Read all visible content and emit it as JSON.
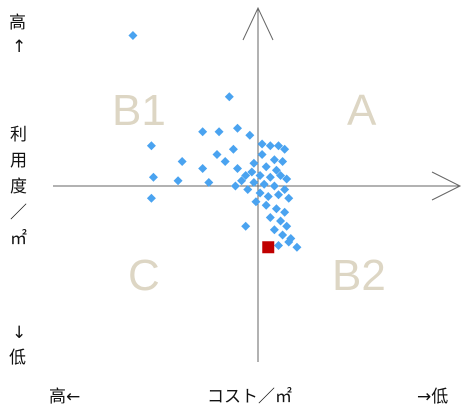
{
  "chart_data": {
    "type": "scatter",
    "xlabel": "コスト／㎡",
    "x_left_label": "高←",
    "x_right_label": "→低",
    "y_top_label": [
      "高",
      "↑"
    ],
    "y_bottom_label": [
      "↓",
      "低"
    ],
    "ylabel": [
      "利",
      "用",
      "度",
      "／",
      "㎡"
    ],
    "quadrant_labels": {
      "A": "A",
      "B1": "B1",
      "B2": "B2",
      "C": "C"
    },
    "xlim": [
      -1,
      1
    ],
    "ylim": [
      -1,
      1
    ],
    "colors": {
      "points": "#4aa3f0",
      "highlight": "#c00000",
      "quadrant_text": "#ddd6c4",
      "axes": "#666666"
    },
    "points": [
      [
        -0.61,
        0.86
      ],
      [
        -0.14,
        0.51
      ],
      [
        -0.52,
        0.23
      ],
      [
        -0.37,
        0.14
      ],
      [
        -0.39,
        0.03
      ],
      [
        -0.51,
        0.05
      ],
      [
        -0.52,
        -0.07
      ],
      [
        -0.27,
        0.1
      ],
      [
        -0.24,
        0.02
      ],
      [
        -0.27,
        0.31
      ],
      [
        -0.19,
        0.31
      ],
      [
        -0.1,
        0.33
      ],
      [
        -0.04,
        0.29
      ],
      [
        -0.12,
        0.21
      ],
      [
        -0.2,
        0.18
      ],
      [
        -0.16,
        0.14
      ],
      [
        -0.1,
        0.1
      ],
      [
        -0.06,
        0.06
      ],
      [
        0.02,
        0.24
      ],
      [
        0.06,
        0.23
      ],
      [
        0.1,
        0.23
      ],
      [
        0.13,
        0.21
      ],
      [
        0.02,
        0.18
      ],
      [
        0.08,
        0.15
      ],
      [
        0.12,
        0.14
      ],
      [
        -0.02,
        0.13
      ],
      [
        0.04,
        0.11
      ],
      [
        0.09,
        0.09
      ],
      [
        -0.03,
        0.08
      ],
      [
        0.01,
        0.06
      ],
      [
        0.06,
        0.05
      ],
      [
        0.11,
        0.06
      ],
      [
        0.14,
        0.04
      ],
      [
        -0.08,
        0.03
      ],
      [
        -0.02,
        0.02
      ],
      [
        0.03,
        0.01
      ],
      [
        0.08,
        0.0
      ],
      [
        0.13,
        -0.02
      ],
      [
        -0.11,
        0.0
      ],
      [
        -0.05,
        -0.02
      ],
      [
        0.01,
        -0.04
      ],
      [
        0.05,
        -0.06
      ],
      [
        0.1,
        -0.05
      ],
      [
        0.15,
        -0.07
      ],
      [
        -0.01,
        -0.09
      ],
      [
        0.04,
        -0.11
      ],
      [
        0.09,
        -0.13
      ],
      [
        0.13,
        -0.15
      ],
      [
        0.06,
        -0.18
      ],
      [
        0.11,
        -0.2
      ],
      [
        0.14,
        -0.23
      ],
      [
        0.08,
        -0.25
      ],
      [
        0.12,
        -0.28
      ],
      [
        0.16,
        -0.3
      ],
      [
        -0.06,
        -0.23
      ],
      [
        0.1,
        -0.34
      ],
      [
        0.19,
        -0.35
      ],
      [
        0.15,
        -0.32
      ]
    ],
    "highlight_point": [
      0.05,
      -0.35
    ]
  }
}
